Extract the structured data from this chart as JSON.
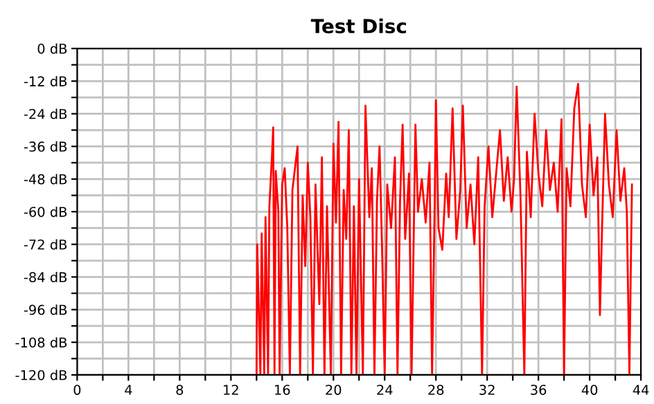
{
  "chart_data": {
    "type": "line",
    "title": "Test Disc",
    "xlim": [
      0,
      44
    ],
    "ylim": [
      -120,
      0
    ],
    "xticks": [
      0,
      {
        "value": 2,
        "label": null
      },
      4,
      {
        "value": 6,
        "label": null
      },
      8,
      {
        "value": 10,
        "label": null
      },
      12,
      {
        "value": 14,
        "label": null
      },
      16,
      {
        "value": 18,
        "label": null
      },
      20,
      {
        "value": 22,
        "label": null
      },
      24,
      {
        "value": 26,
        "label": null
      },
      28,
      {
        "value": 30,
        "label": null
      },
      32,
      {
        "value": 34,
        "label": null
      },
      36,
      {
        "value": 38,
        "label": null
      },
      40,
      {
        "value": 42,
        "label": null
      },
      44
    ],
    "yticks": [
      {
        "value": -120,
        "label": "-120 dB"
      },
      {
        "value": -114,
        "label": null
      },
      {
        "value": -108,
        "label": "-108 dB"
      },
      {
        "value": -102,
        "label": null
      },
      {
        "value": -96,
        "label": "-96 dB"
      },
      {
        "value": -90,
        "label": null
      },
      {
        "value": -84,
        "label": "-84 dB"
      },
      {
        "value": -78,
        "label": null
      },
      {
        "value": -72,
        "label": "-72 dB"
      },
      {
        "value": -66,
        "label": null
      },
      {
        "value": -60,
        "label": "-60 dB"
      },
      {
        "value": -54,
        "label": null
      },
      {
        "value": -48,
        "label": "-48 dB"
      },
      {
        "value": -42,
        "label": null
      },
      {
        "value": -36,
        "label": "-36 dB"
      },
      {
        "value": -30,
        "label": null
      },
      {
        "value": -24,
        "label": "-24 dB"
      },
      {
        "value": -18,
        "label": null
      },
      {
        "value": -12,
        "label": "-12 dB"
      },
      {
        "value": -6,
        "label": null
      },
      {
        "value": 0,
        "label": "0 dB"
      }
    ],
    "grid": true,
    "marker": "none",
    "line_style": "solid",
    "series": [
      {
        "color": "#ff0000",
        "x": [
          14.0,
          14.05,
          14.3,
          14.4,
          14.6,
          14.7,
          14.9,
          15.0,
          15.2,
          15.3,
          15.4,
          15.5,
          15.7,
          15.8,
          16.0,
          16.2,
          16.4,
          16.6,
          16.8,
          17.2,
          17.4,
          17.6,
          17.8,
          18.0,
          18.2,
          18.4,
          18.6,
          18.9,
          19.1,
          19.3,
          19.5,
          19.8,
          20.0,
          20.2,
          20.4,
          20.6,
          20.8,
          21.0,
          21.2,
          21.4,
          21.6,
          21.8,
          22.0,
          22.3,
          22.5,
          22.8,
          23.0,
          23.2,
          23.4,
          23.6,
          23.8,
          24.0,
          24.2,
          24.5,
          24.8,
          25.0,
          25.2,
          25.4,
          25.6,
          25.9,
          26.1,
          26.4,
          26.6,
          26.9,
          27.2,
          27.5,
          27.7,
          27.9,
          28.0,
          28.2,
          28.5,
          28.8,
          29.0,
          29.3,
          29.6,
          29.9,
          30.1,
          30.4,
          30.7,
          31.0,
          31.3,
          31.6,
          31.8,
          32.1,
          32.4,
          32.7,
          33.0,
          33.3,
          33.6,
          33.9,
          34.1,
          34.3,
          34.6,
          34.9,
          35.1,
          35.4,
          35.7,
          36.0,
          36.3,
          36.6,
          36.9,
          37.2,
          37.5,
          37.8,
          38.0,
          38.2,
          38.5,
          38.8,
          39.1,
          39.4,
          39.7,
          40.0,
          40.3,
          40.6,
          40.8,
          41.0,
          41.2,
          41.5,
          41.8,
          42.1,
          42.4,
          42.7,
          42.9,
          43.1,
          43.3
        ],
        "values": [
          -120,
          -72,
          -120,
          -68,
          -120,
          -62,
          -120,
          -58,
          -40,
          -29,
          -120,
          -45,
          -60,
          -120,
          -50,
          -44,
          -66,
          -120,
          -52,
          -36,
          -120,
          -54,
          -80,
          -42,
          -62,
          -120,
          -50,
          -94,
          -40,
          -120,
          -58,
          -120,
          -35,
          -64,
          -27,
          -120,
          -52,
          -70,
          -30,
          -120,
          -58,
          -120,
          -48,
          -120,
          -21,
          -62,
          -44,
          -120,
          -56,
          -36,
          -74,
          -120,
          -50,
          -66,
          -40,
          -120,
          -56,
          -28,
          -70,
          -46,
          -120,
          -28,
          -60,
          -48,
          -64,
          -42,
          -120,
          -58,
          -19,
          -66,
          -74,
          -46,
          -62,
          -22,
          -70,
          -52,
          -21,
          -66,
          -50,
          -72,
          -40,
          -120,
          -58,
          -36,
          -62,
          -46,
          -30,
          -56,
          -40,
          -60,
          -48,
          -14,
          -54,
          -120,
          -38,
          -62,
          -24,
          -46,
          -58,
          -30,
          -52,
          -42,
          -60,
          -26,
          -120,
          -44,
          -58,
          -22,
          -13,
          -50,
          -62,
          -28,
          -54,
          -40,
          -98,
          -60,
          -24,
          -50,
          -62,
          -30,
          -56,
          -44,
          -60,
          -120,
          -50
        ]
      }
    ]
  }
}
